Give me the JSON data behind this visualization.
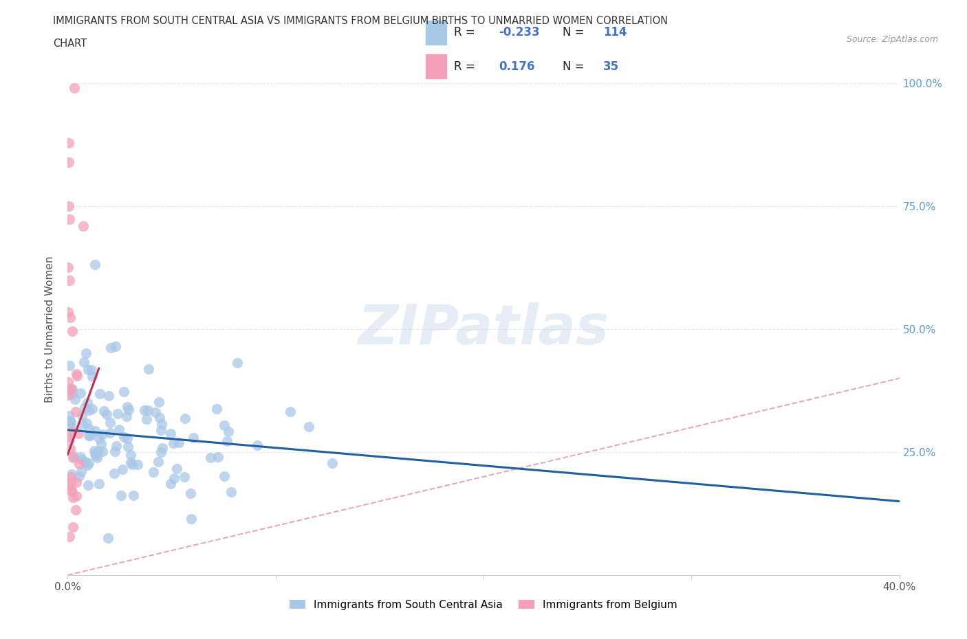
{
  "title_line1": "IMMIGRANTS FROM SOUTH CENTRAL ASIA VS IMMIGRANTS FROM BELGIUM BIRTHS TO UNMARRIED WOMEN CORRELATION",
  "title_line2": "CHART",
  "source_text": "Source: ZipAtlas.com",
  "ylabel": "Births to Unmarried Women",
  "xlim": [
    0.0,
    0.4
  ],
  "ylim": [
    0.0,
    1.0
  ],
  "xticks": [
    0.0,
    0.1,
    0.2,
    0.3,
    0.4
  ],
  "xticklabels": [
    "0.0%",
    "",
    "",
    "",
    "40.0%"
  ],
  "yticks": [
    0.0,
    0.25,
    0.5,
    0.75,
    1.0
  ],
  "yticklabels_right": [
    "",
    "25.0%",
    "50.0%",
    "75.0%",
    "100.0%"
  ],
  "legend_R": [
    "-0.233",
    "0.176"
  ],
  "legend_N": [
    "114",
    "35"
  ],
  "legend_series": [
    {
      "label": "Immigrants from South Central Asia",
      "color": "#a8c8e8"
    },
    {
      "label": "Immigrants from Belgium",
      "color": "#f4a0b0"
    }
  ],
  "blue_color": "#a8c8e8",
  "blue_edge": "#5b9bd5",
  "pink_color": "#f4a0b8",
  "pink_edge": "#e87090",
  "blue_trendline_color": "#2060a0",
  "pink_trendline_color": "#c03050",
  "diag_color": "#e8a0a8",
  "watermark": "ZIPatlas",
  "background_color": "#ffffff",
  "grid_color": "#e8e8e8"
}
